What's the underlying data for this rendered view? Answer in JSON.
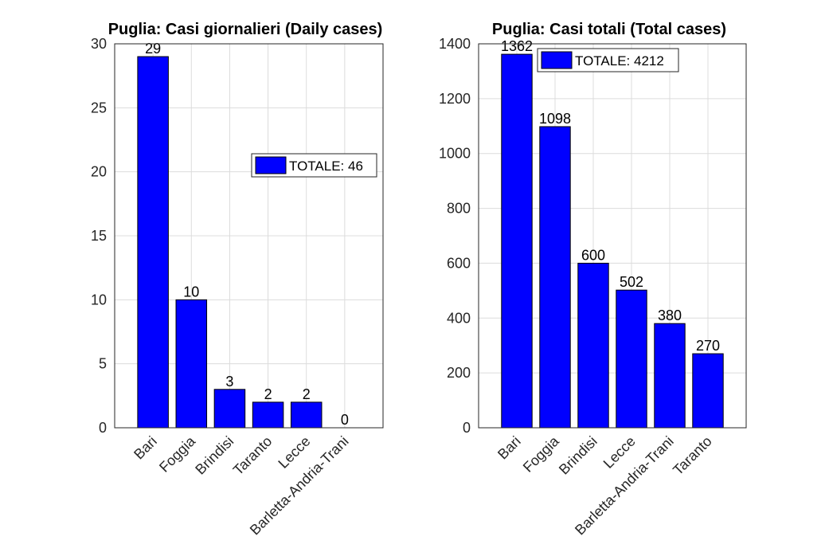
{
  "chart_data": [
    {
      "type": "bar",
      "title": "Puglia: Casi giornalieri (Daily cases)",
      "categories": [
        "Bari",
        "Foggia",
        "Brindisi",
        "Taranto",
        "Lecce",
        "Barletta-Andria-Trani"
      ],
      "values": [
        29,
        10,
        3,
        2,
        2,
        0
      ],
      "data_labels": [
        "29",
        "10",
        "3",
        "2",
        "2",
        "0"
      ],
      "ylim": [
        0,
        30
      ],
      "yticks": [
        0,
        5,
        10,
        15,
        20,
        25,
        30
      ],
      "ytick_labels": [
        "0",
        "5",
        "10",
        "15",
        "20",
        "25",
        "30"
      ],
      "legend": {
        "label": "TOTALE: 46",
        "placement": "right-middle"
      },
      "bar_color": "#0000ff",
      "grid": true
    },
    {
      "type": "bar",
      "title": "Puglia: Casi totali (Total cases)",
      "categories": [
        "Bari",
        "Foggia",
        "Brindisi",
        "Lecce",
        "Barletta-Andria-Trani",
        "Taranto"
      ],
      "values": [
        1362,
        1098,
        600,
        502,
        380,
        270
      ],
      "data_labels": [
        "1362",
        "1098",
        "600",
        "502",
        "380",
        "270"
      ],
      "ylim": [
        0,
        1400
      ],
      "yticks": [
        0,
        200,
        400,
        600,
        800,
        1000,
        1200,
        1400
      ],
      "ytick_labels": [
        "0",
        "200",
        "400",
        "600",
        "800",
        "1000",
        "1200",
        "1400"
      ],
      "legend": {
        "label": "TOTALE: 4212",
        "placement": "top-center"
      },
      "bar_color": "#0000ff",
      "grid": true
    }
  ]
}
